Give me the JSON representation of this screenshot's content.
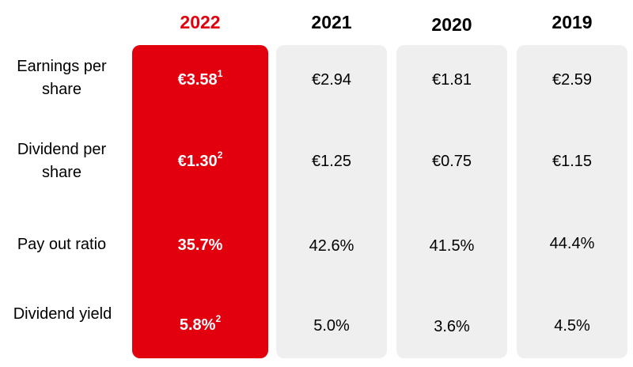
{
  "chart_data": {
    "type": "table",
    "highlight_color": "#e2000f",
    "panel_color": "#efefef",
    "columns": [
      "2022",
      "2021",
      "2020",
      "2019"
    ],
    "highlighted_column": "2022",
    "rows": [
      {
        "label": "Earnings per share",
        "cells": [
          {
            "text": "€3.58",
            "note": "1"
          },
          {
            "text": "€2.94",
            "note": ""
          },
          {
            "text": "€1.81",
            "note": ""
          },
          {
            "text": "€2.59",
            "note": ""
          }
        ]
      },
      {
        "label": "Dividend per share",
        "cells": [
          {
            "text": "€1.30",
            "note": "2"
          },
          {
            "text": "€1.25",
            "note": ""
          },
          {
            "text": "€0.75",
            "note": ""
          },
          {
            "text": "€1.15",
            "note": ""
          }
        ]
      },
      {
        "label": "Pay out ratio",
        "cells": [
          {
            "text": "35.7%",
            "note": ""
          },
          {
            "text": "42.6%",
            "note": ""
          },
          {
            "text": "41.5%",
            "note": ""
          },
          {
            "text": "44.4%",
            "note": ""
          }
        ]
      },
      {
        "label": "Dividend yield",
        "cells": [
          {
            "text": "5.8%",
            "note": "2"
          },
          {
            "text": "5.0%",
            "note": ""
          },
          {
            "text": "3.6%",
            "note": ""
          },
          {
            "text": "4.5%",
            "note": ""
          }
        ]
      }
    ]
  }
}
